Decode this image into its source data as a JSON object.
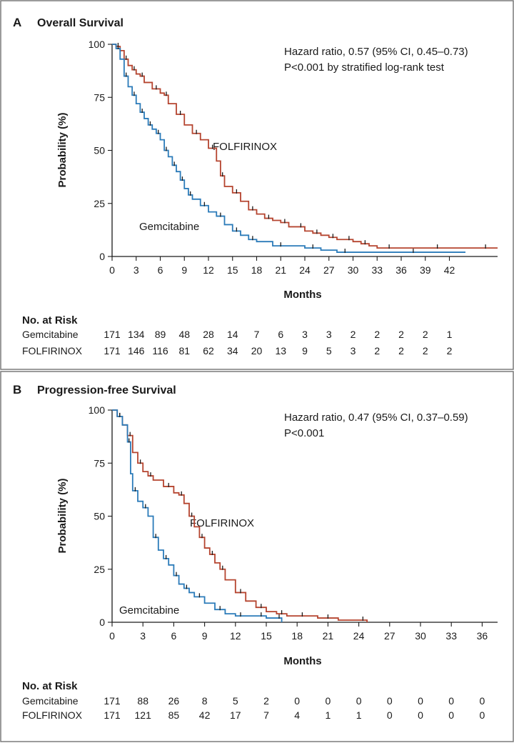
{
  "chart_data": [
    {
      "type": "line",
      "panel": "A",
      "title": "Overall Survival",
      "xlabel": "Months",
      "ylabel": "Probability (%)",
      "xlim": [
        0,
        48
      ],
      "ylim": [
        0,
        100
      ],
      "xticks": [
        0,
        3,
        6,
        9,
        12,
        15,
        18,
        21,
        24,
        27,
        30,
        33,
        36,
        39,
        42
      ],
      "yticks": [
        0,
        25,
        50,
        75,
        100
      ],
      "annotations": [
        "Hazard ratio, 0.57 (95% CI, 0.45–0.73)",
        "P<0.001 by stratified log-rank test"
      ],
      "series": [
        {
          "name": "FOLFIRINOX",
          "color": "#b5442f",
          "x": [
            0,
            0.5,
            1,
            1.5,
            2,
            2.5,
            3,
            3.5,
            4,
            5,
            6,
            6.5,
            7,
            8,
            9,
            10,
            11,
            12,
            13,
            13.5,
            14,
            15,
            16,
            17,
            18,
            19,
            20,
            21,
            22,
            23,
            24,
            25,
            26,
            27,
            28,
            29,
            30,
            31,
            32,
            33,
            36,
            39,
            42,
            45,
            48
          ],
          "values": [
            100,
            99,
            97,
            93,
            90,
            88,
            86,
            85,
            82,
            79,
            77,
            76,
            72,
            67,
            62,
            58,
            55,
            51,
            45,
            38,
            33,
            30,
            26,
            22,
            20,
            18,
            17,
            16,
            14,
            14,
            12,
            11,
            10,
            9,
            8,
            8,
            7,
            6,
            5,
            4,
            4,
            4,
            4,
            4,
            4
          ]
        },
        {
          "name": "Gemcitabine",
          "color": "#2b7bb9",
          "x": [
            0,
            0.5,
            1,
            1.5,
            2,
            2.5,
            3,
            3.5,
            4,
            4.5,
            5,
            5.5,
            6,
            6.5,
            7,
            7.5,
            8,
            8.5,
            9,
            9.5,
            10,
            11,
            12,
            13,
            14,
            15,
            16,
            17,
            18,
            20,
            22,
            24,
            26,
            28,
            30,
            35,
            40,
            44
          ],
          "values": [
            100,
            98,
            93,
            85,
            80,
            76,
            72,
            68,
            65,
            62,
            60,
            58,
            55,
            50,
            47,
            43,
            40,
            36,
            32,
            29,
            27,
            24,
            21,
            19,
            15,
            12,
            10,
            8,
            7,
            5,
            5,
            4,
            3,
            2,
            2,
            2,
            2,
            2
          ]
        }
      ],
      "risk_table": {
        "title": "No. at Risk",
        "times": [
          0,
          3,
          6,
          9,
          12,
          15,
          18,
          21,
          24,
          27,
          30,
          33,
          36,
          39,
          42
        ],
        "rows": [
          {
            "label": "Gemcitabine",
            "values": [
              171,
              134,
              89,
              48,
              28,
              14,
              7,
              6,
              3,
              3,
              2,
              2,
              2,
              2,
              1
            ]
          },
          {
            "label": "FOLFIRINOX",
            "values": [
              171,
              146,
              116,
              81,
              62,
              34,
              20,
              13,
              9,
              5,
              3,
              2,
              2,
              2,
              2
            ]
          }
        ]
      }
    },
    {
      "type": "line",
      "panel": "B",
      "title": "Progression-free Survival",
      "xlabel": "Months",
      "ylabel": "Probability (%)",
      "xlim": [
        0,
        37.5
      ],
      "ylim": [
        0,
        100
      ],
      "xticks": [
        0,
        3,
        6,
        9,
        12,
        15,
        18,
        21,
        24,
        27,
        30,
        33,
        36
      ],
      "yticks": [
        0,
        25,
        50,
        75,
        100
      ],
      "annotations": [
        "Hazard ratio, 0.47 (95% CI, 0.37–0.59)",
        "P<0.001"
      ],
      "series": [
        {
          "name": "FOLFIRINOX",
          "color": "#b5442f",
          "x": [
            0,
            0.5,
            1,
            1.5,
            2,
            2.5,
            3,
            3.5,
            4,
            5,
            6,
            6.5,
            7,
            7.5,
            8,
            8.5,
            9,
            9.5,
            10,
            10.5,
            11,
            12,
            13,
            14,
            15,
            16,
            17,
            18,
            19,
            20,
            22,
            24,
            24.8
          ],
          "values": [
            100,
            97,
            93,
            88,
            80,
            75,
            71,
            69,
            67,
            64,
            61,
            60,
            56,
            50,
            45,
            40,
            35,
            32,
            28,
            25,
            20,
            14,
            10,
            7,
            5,
            4,
            3,
            3,
            3,
            2,
            1,
            1,
            0
          ]
        },
        {
          "name": "Gemcitabine",
          "color": "#2b7bb9",
          "x": [
            0,
            0.5,
            1,
            1.5,
            1.8,
            2,
            2.5,
            3,
            3.5,
            4,
            4.5,
            5,
            5.5,
            6,
            6.5,
            7,
            7.5,
            8,
            9,
            10,
            11,
            12,
            13,
            14,
            15,
            16,
            16.5
          ],
          "values": [
            100,
            97,
            93,
            85,
            70,
            62,
            57,
            54,
            50,
            40,
            34,
            30,
            27,
            22,
            18,
            16,
            14,
            12,
            9,
            6,
            4,
            3,
            3,
            3,
            2,
            2,
            0
          ]
        }
      ],
      "risk_table": {
        "title": "No. at Risk",
        "times": [
          0,
          3,
          6,
          9,
          12,
          15,
          18,
          21,
          24,
          27,
          30,
          33,
          36
        ],
        "rows": [
          {
            "label": "Gemcitabine",
            "values": [
              171,
              88,
              26,
              8,
              5,
              2,
              0,
              0,
              0,
              0,
              0,
              0,
              0
            ]
          },
          {
            "label": "FOLFIRINOX",
            "values": [
              171,
              121,
              85,
              42,
              17,
              7,
              4,
              1,
              1,
              0,
              0,
              0,
              0
            ]
          }
        ]
      }
    }
  ]
}
